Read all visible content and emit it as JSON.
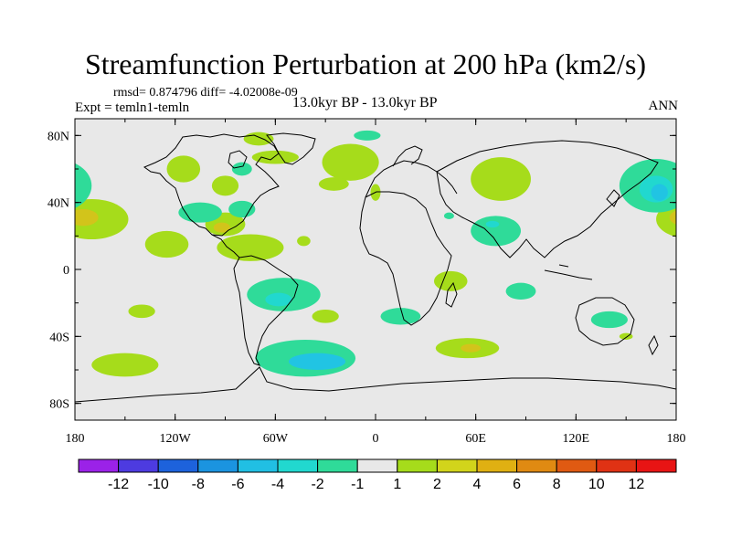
{
  "title": "Streamfunction Perturbation at 200 hPa (km2/s)",
  "stats": "rmsd= 0.874796 diff= -4.02008e-09",
  "experiment": "Expt = temln1-temln",
  "period": "13.0kyr BP - 13.0kyr BP",
  "season": "ANN",
  "axes": {
    "lat_labels": [
      "80N",
      "40N",
      "0",
      "40S",
      "80S"
    ],
    "lon_labels": [
      "180",
      "120W",
      "60W",
      "0",
      "60E",
      "120E",
      "180"
    ]
  },
  "colorbar": {
    "labels": [
      "-12",
      "-10",
      "-8",
      "-6",
      "-4",
      "-2",
      "-1",
      "1",
      "2",
      "4",
      "6",
      "8",
      "10",
      "12"
    ],
    "colors": [
      "#9b22e8",
      "#4d3be0",
      "#1d62dc",
      "#1b94e0",
      "#21bfe3",
      "#21d8cf",
      "#2fdb99",
      "#e8e8e8",
      "#a6dc1b",
      "#d2d41b",
      "#e0b012",
      "#e08a12",
      "#e05a12",
      "#e03214",
      "#e81414"
    ]
  },
  "colors": {
    "ocean": "#e8e8e8",
    "pos1": "#a6dc1b",
    "pos2": "#d2c41b",
    "neg1": "#2fdb99",
    "neg2": "#21d8cf",
    "neg3": "#21c4e3"
  },
  "map_data": {
    "fields": [
      {
        "name": "pacific-south-positive",
        "lon": -150,
        "lat": -57,
        "rlon": 20,
        "rlat": 7,
        "level": 1
      },
      {
        "name": "south-atlantic-negative",
        "lon": -42,
        "lat": -53,
        "rlon": 30,
        "rlat": 11,
        "level": -1
      },
      {
        "name": "south-atlantic-negative-core",
        "lon": -35,
        "lat": -55,
        "rlon": 17,
        "rlat": 5,
        "level": -3
      },
      {
        "name": "south-indian-positive",
        "lon": 55,
        "lat": -47,
        "rlon": 19,
        "rlat": 6,
        "level": 1
      },
      {
        "name": "south-indian-positive-core",
        "lon": 57,
        "lat": -47,
        "rlon": 6,
        "rlat": 2.5,
        "level": 2
      },
      {
        "name": "south-america-negative",
        "lon": -55,
        "lat": -15,
        "rlon": 22,
        "rlat": 10,
        "level": -1
      },
      {
        "name": "south-america-negative-core",
        "lon": -58,
        "lat": -18,
        "rlon": 8,
        "rlat": 4,
        "level": -2
      },
      {
        "name": "east-pacific-south-positive",
        "lon": -140,
        "lat": -25,
        "rlon": 8,
        "rlat": 4,
        "level": 1
      },
      {
        "name": "south-atlantic-small-positive",
        "lon": -30,
        "lat": -28,
        "rlon": 8,
        "rlat": 4,
        "level": 1
      },
      {
        "name": "africa-south-negative",
        "lon": 15,
        "lat": -28,
        "rlon": 12,
        "rlat": 5,
        "level": -1
      },
      {
        "name": "madagascar-positive",
        "lon": 45,
        "lat": -7,
        "rlon": 10,
        "rlat": 6,
        "level": 1
      },
      {
        "name": "indian-ocean-negative",
        "lon": 87,
        "lat": -13,
        "rlon": 9,
        "rlat": 5,
        "level": -1
      },
      {
        "name": "australia-south-negative",
        "lon": 140,
        "lat": -30,
        "rlon": 11,
        "rlat": 5,
        "level": -1
      },
      {
        "name": "tasman-positive",
        "lon": 150,
        "lat": -40,
        "rlon": 4,
        "rlat": 2,
        "level": 1
      },
      {
        "name": "central-pacific-north-positive",
        "lon": -125,
        "lat": 15,
        "rlon": 13,
        "rlat": 8,
        "level": 1
      },
      {
        "name": "caribbean-positive",
        "lon": -75,
        "lat": 13,
        "rlon": 20,
        "rlat": 8,
        "level": 1
      },
      {
        "name": "gulf-positive",
        "lon": -90,
        "lat": 27,
        "rlon": 12,
        "rlat": 7,
        "level": 1
      },
      {
        "name": "gulf-positive-core",
        "lon": -92,
        "lat": 25,
        "rlon": 5,
        "rlat": 3,
        "level": 2
      },
      {
        "name": "atlantic-north-small-positive",
        "lon": -43,
        "lat": 17,
        "rlon": 4,
        "rlat": 3,
        "level": 1
      },
      {
        "name": "north-america-negative",
        "lon": -105,
        "lat": 34,
        "rlon": 13,
        "rlat": 6,
        "level": -1
      },
      {
        "name": "florida-negative",
        "lon": -80,
        "lat": 36,
        "rlon": 8,
        "rlat": 5,
        "level": -1
      },
      {
        "name": "hawaii-negative",
        "lon": -155,
        "lat": 27,
        "rlon": 5,
        "rlat": 3,
        "level": -1
      },
      {
        "name": "east-pacific-positive",
        "lon": -170,
        "lat": 30,
        "rlon": 22,
        "rlat": 12,
        "level": 1
      },
      {
        "name": "east-pacific-positive-core",
        "lon": -175,
        "lat": 31,
        "rlon": 9,
        "rlat": 5,
        "level": 2
      },
      {
        "name": "alaska-canada-positive",
        "lon": -115,
        "lat": 60,
        "rlon": 10,
        "rlat": 8,
        "level": 1
      },
      {
        "name": "greenland-positive",
        "lon": -15,
        "lat": 64,
        "rlon": 17,
        "rlat": 11,
        "level": 1
      },
      {
        "name": "arctic-canada-positive",
        "lon": -60,
        "lat": 67,
        "rlon": 14,
        "rlat": 4,
        "level": 1
      },
      {
        "name": "arctic-north-positive",
        "lon": -70,
        "lat": 78,
        "rlon": 9,
        "rlat": 4,
        "level": 1
      },
      {
        "name": "arctic-north-positive-2",
        "lon": -5,
        "lat": 80,
        "rlon": 8,
        "rlat": 3,
        "level": -1
      },
      {
        "name": "hudson-negative",
        "lon": -80,
        "lat": 60,
        "rlon": 6,
        "rlat": 4,
        "level": -1
      },
      {
        "name": "north-atlantic-positive",
        "lon": -25,
        "lat": 51,
        "rlon": 9,
        "rlat": 4,
        "level": 1
      },
      {
        "name": "west-atlantic-positive",
        "lon": -90,
        "lat": 50,
        "rlon": 8,
        "rlat": 6,
        "level": 1
      },
      {
        "name": "europe-positive",
        "lon": 0,
        "lat": 46,
        "rlon": 3,
        "rlat": 5,
        "level": 1
      },
      {
        "name": "siberia-positive",
        "lon": 75,
        "lat": 54,
        "rlon": 18,
        "rlat": 13,
        "level": 1
      },
      {
        "name": "east-asia-negative",
        "lon": 72,
        "lat": 23,
        "rlon": 15,
        "rlat": 9,
        "level": -1
      },
      {
        "name": "east-asia-negative-core",
        "lon": 70,
        "lat": 27,
        "rlon": 4,
        "rlat": 2,
        "level": -2
      },
      {
        "name": "arabian-small-negative",
        "lon": 44,
        "lat": 32,
        "rlon": 3,
        "rlat": 2,
        "level": -1
      },
      {
        "name": "north-pacific-negative",
        "lon": 168,
        "lat": 50,
        "rlon": 22,
        "rlat": 16,
        "level": -1
      },
      {
        "name": "north-pacific-negative-core",
        "lon": 168,
        "lat": 48,
        "rlon": 10,
        "rlat": 8,
        "level": -2
      },
      {
        "name": "north-pacific-negative-core-2",
        "lon": 170,
        "lat": 46,
        "rlon": 5,
        "rlat": 5,
        "level": -3
      }
    ]
  }
}
